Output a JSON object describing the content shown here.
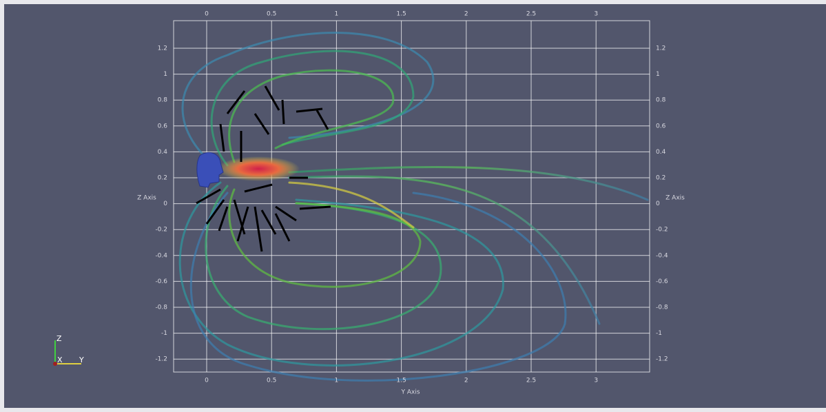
{
  "axes": {
    "horizontal": {
      "label": "Y Axis",
      "ticks": [
        "0",
        "0.5",
        "1",
        "1.5",
        "2",
        "2.5",
        "3"
      ]
    },
    "vertical": {
      "label": "Z Axis",
      "ticks": [
        "1.2",
        "1",
        "0.8",
        "0.6",
        "0.4",
        "0.2",
        "0",
        "-0.2",
        "-0.4",
        "-0.6",
        "-0.8",
        "-1",
        "-1.2"
      ]
    }
  },
  "orientation_axes": {
    "z": "Z",
    "x": "X",
    "y": "Y"
  }
}
